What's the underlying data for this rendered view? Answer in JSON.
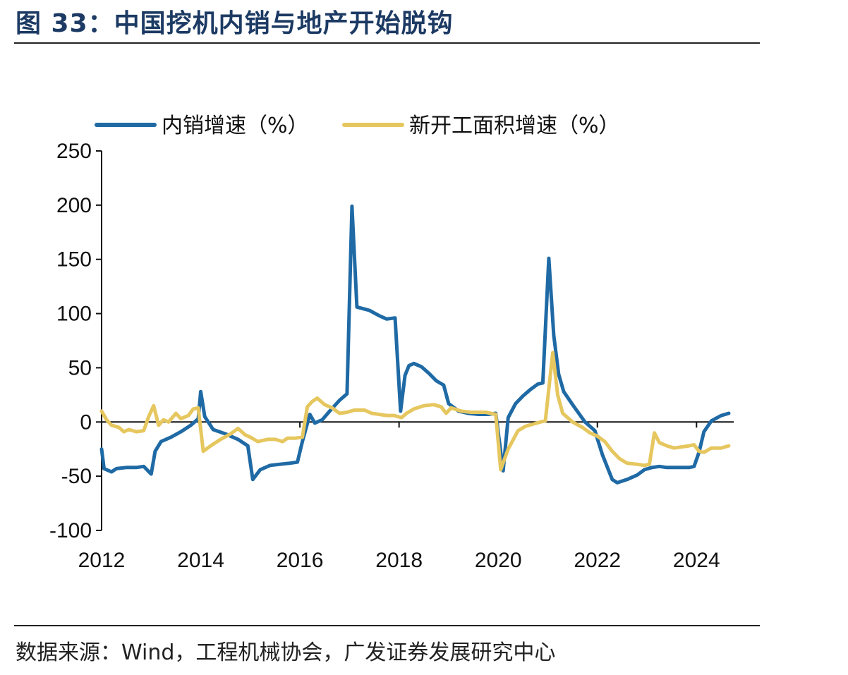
{
  "figure": {
    "title": "图 33：中国挖机内销与地产开始脱钩",
    "source": "数据来源：Wind，工程机械协会，广发证券发展研究中心"
  },
  "chart_data": {
    "type": "line",
    "title": "",
    "xlabel": "",
    "ylabel": "",
    "ylim": [
      -100,
      250
    ],
    "y_ticks": [
      250,
      200,
      150,
      100,
      50,
      0,
      -50,
      -100
    ],
    "x_ticks": [
      "2012",
      "2014",
      "2016",
      "2018",
      "2020",
      "2022",
      "2024"
    ],
    "x_range": [
      2012.0,
      2024.75
    ],
    "grid": false,
    "legend_position": "top",
    "series": [
      {
        "name": "内销增速（%）",
        "color": "#1f6aa5",
        "points": [
          [
            2012.0,
            -25
          ],
          [
            2012.05,
            -43
          ],
          [
            2012.2,
            -46
          ],
          [
            2012.3,
            -43
          ],
          [
            2012.5,
            -42
          ],
          [
            2012.7,
            -42
          ],
          [
            2012.85,
            -41
          ],
          [
            2013.0,
            -48
          ],
          [
            2013.08,
            -27
          ],
          [
            2013.2,
            -18
          ],
          [
            2013.4,
            -14
          ],
          [
            2013.6,
            -9
          ],
          [
            2013.8,
            -3
          ],
          [
            2013.95,
            3
          ],
          [
            2014.0,
            28
          ],
          [
            2014.08,
            5
          ],
          [
            2014.25,
            -7
          ],
          [
            2014.5,
            -11
          ],
          [
            2014.75,
            -16
          ],
          [
            2014.95,
            -22
          ],
          [
            2015.05,
            -53
          ],
          [
            2015.2,
            -44
          ],
          [
            2015.4,
            -40
          ],
          [
            2015.6,
            -39
          ],
          [
            2015.8,
            -38
          ],
          [
            2015.95,
            -37
          ],
          [
            2016.05,
            -18
          ],
          [
            2016.2,
            7
          ],
          [
            2016.3,
            -1
          ],
          [
            2016.45,
            2
          ],
          [
            2016.6,
            10
          ],
          [
            2016.8,
            20
          ],
          [
            2016.95,
            26
          ],
          [
            2017.05,
            199
          ],
          [
            2017.15,
            106
          ],
          [
            2017.4,
            103
          ],
          [
            2017.6,
            98
          ],
          [
            2017.75,
            95
          ],
          [
            2017.92,
            96
          ],
          [
            2018.03,
            10
          ],
          [
            2018.12,
            43
          ],
          [
            2018.2,
            52
          ],
          [
            2018.3,
            54
          ],
          [
            2018.45,
            51
          ],
          [
            2018.6,
            45
          ],
          [
            2018.75,
            38
          ],
          [
            2018.9,
            34
          ],
          [
            2019.0,
            17
          ],
          [
            2019.2,
            10
          ],
          [
            2019.4,
            8
          ],
          [
            2019.6,
            7
          ],
          [
            2019.8,
            7
          ],
          [
            2019.95,
            8
          ],
          [
            2020.1,
            -45
          ],
          [
            2020.2,
            4
          ],
          [
            2020.35,
            17
          ],
          [
            2020.5,
            24
          ],
          [
            2020.65,
            30
          ],
          [
            2020.8,
            35
          ],
          [
            2020.9,
            36
          ],
          [
            2021.02,
            151
          ],
          [
            2021.12,
            80
          ],
          [
            2021.22,
            44
          ],
          [
            2021.32,
            28
          ],
          [
            2021.5,
            16
          ],
          [
            2021.75,
            0
          ],
          [
            2021.95,
            -8
          ],
          [
            2022.1,
            -30
          ],
          [
            2022.3,
            -53
          ],
          [
            2022.4,
            -56
          ],
          [
            2022.6,
            -53
          ],
          [
            2022.8,
            -49
          ],
          [
            2022.95,
            -44
          ],
          [
            2023.1,
            -42
          ],
          [
            2023.25,
            -41
          ],
          [
            2023.4,
            -42
          ],
          [
            2023.55,
            -42
          ],
          [
            2023.7,
            -42
          ],
          [
            2023.85,
            -42
          ],
          [
            2023.95,
            -41
          ],
          [
            2024.05,
            -28
          ],
          [
            2024.15,
            -9
          ],
          [
            2024.3,
            1
          ],
          [
            2024.5,
            6
          ],
          [
            2024.65,
            8
          ]
        ]
      },
      {
        "name": "新开工面积增速（%）",
        "color": "#e6c75f",
        "points": [
          [
            2012.0,
            10
          ],
          [
            2012.1,
            2
          ],
          [
            2012.2,
            -3
          ],
          [
            2012.35,
            -5
          ],
          [
            2012.45,
            -9
          ],
          [
            2012.55,
            -7
          ],
          [
            2012.7,
            -9
          ],
          [
            2012.85,
            -8
          ],
          [
            2012.95,
            5
          ],
          [
            2013.05,
            15
          ],
          [
            2013.15,
            -3
          ],
          [
            2013.25,
            2
          ],
          [
            2013.35,
            0
          ],
          [
            2013.5,
            8
          ],
          [
            2013.6,
            3
          ],
          [
            2013.75,
            6
          ],
          [
            2013.85,
            12
          ],
          [
            2013.95,
            13
          ],
          [
            2014.05,
            -27
          ],
          [
            2014.2,
            -22
          ],
          [
            2014.4,
            -16
          ],
          [
            2014.6,
            -11
          ],
          [
            2014.75,
            -6
          ],
          [
            2014.9,
            -12
          ],
          [
            2015.0,
            -14
          ],
          [
            2015.15,
            -18
          ],
          [
            2015.35,
            -16
          ],
          [
            2015.5,
            -16
          ],
          [
            2015.65,
            -18
          ],
          [
            2015.75,
            -15
          ],
          [
            2015.9,
            -15
          ],
          [
            2016.05,
            -14
          ],
          [
            2016.15,
            14
          ],
          [
            2016.25,
            19
          ],
          [
            2016.35,
            22
          ],
          [
            2016.5,
            16
          ],
          [
            2016.65,
            13
          ],
          [
            2016.8,
            8
          ],
          [
            2016.95,
            9
          ],
          [
            2017.1,
            11
          ],
          [
            2017.3,
            11
          ],
          [
            2017.45,
            8
          ],
          [
            2017.6,
            7
          ],
          [
            2017.75,
            6
          ],
          [
            2017.9,
            6
          ],
          [
            2018.05,
            4
          ],
          [
            2018.15,
            8
          ],
          [
            2018.3,
            12
          ],
          [
            2018.5,
            15
          ],
          [
            2018.7,
            16
          ],
          [
            2018.85,
            14
          ],
          [
            2018.95,
            8
          ],
          [
            2019.05,
            13
          ],
          [
            2019.25,
            10
          ],
          [
            2019.45,
            9
          ],
          [
            2019.6,
            9
          ],
          [
            2019.75,
            9
          ],
          [
            2019.95,
            7
          ],
          [
            2020.05,
            -44
          ],
          [
            2020.2,
            -25
          ],
          [
            2020.4,
            -8
          ],
          [
            2020.55,
            -4
          ],
          [
            2020.7,
            -2
          ],
          [
            2020.85,
            0
          ],
          [
            2020.95,
            1
          ],
          [
            2021.1,
            64
          ],
          [
            2021.2,
            25
          ],
          [
            2021.3,
            8
          ],
          [
            2021.5,
            0
          ],
          [
            2021.7,
            -5
          ],
          [
            2021.85,
            -10
          ],
          [
            2022.0,
            -13
          ],
          [
            2022.15,
            -18
          ],
          [
            2022.3,
            -27
          ],
          [
            2022.45,
            -34
          ],
          [
            2022.6,
            -38
          ],
          [
            2022.8,
            -39
          ],
          [
            2022.95,
            -40
          ],
          [
            2023.05,
            -39
          ],
          [
            2023.15,
            -10
          ],
          [
            2023.25,
            -19
          ],
          [
            2023.4,
            -22
          ],
          [
            2023.55,
            -24
          ],
          [
            2023.7,
            -23
          ],
          [
            2023.85,
            -22
          ],
          [
            2023.95,
            -21
          ],
          [
            2024.05,
            -27
          ],
          [
            2024.15,
            -28
          ],
          [
            2024.3,
            -24
          ],
          [
            2024.5,
            -24
          ],
          [
            2024.65,
            -22
          ]
        ]
      }
    ]
  }
}
